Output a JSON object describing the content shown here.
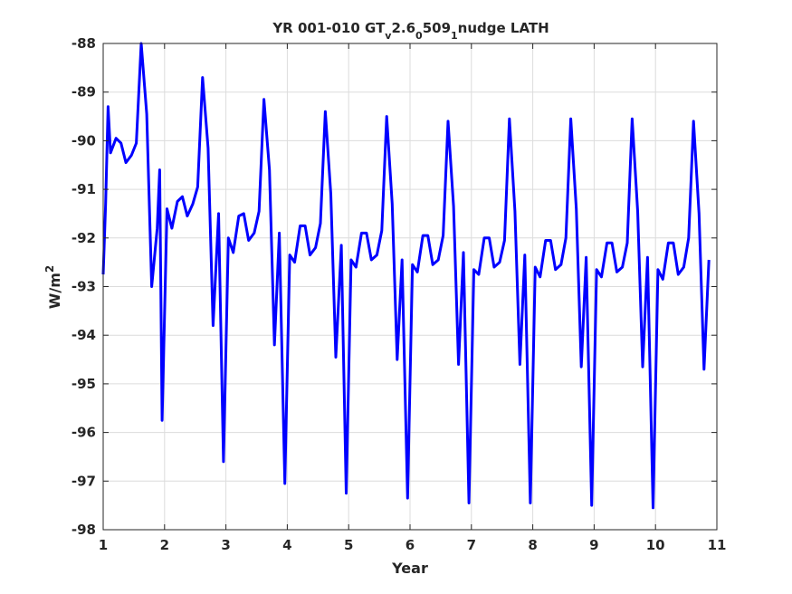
{
  "chart_data": {
    "type": "line",
    "title": {
      "parts": [
        {
          "text": "YR 001-010 GT",
          "shift": "base"
        },
        {
          "text": "v",
          "shift": "sub"
        },
        {
          "text": "2.6",
          "shift": "base"
        },
        {
          "text": "0",
          "shift": "sub"
        },
        {
          "text": "509",
          "shift": "base"
        },
        {
          "text": "1",
          "shift": "sub"
        },
        {
          "text": "nudge LATH",
          "shift": "base"
        }
      ]
    },
    "xlabel": "Year",
    "ylabel": {
      "base": "W/m",
      "sup": "2"
    },
    "xlim": [
      1,
      11
    ],
    "ylim": [
      -98,
      -88
    ],
    "xticks": [
      1,
      2,
      3,
      4,
      5,
      6,
      7,
      8,
      9,
      10,
      11
    ],
    "yticks": [
      -98,
      -97,
      -96,
      -95,
      -94,
      -93,
      -92,
      -91,
      -90,
      -89,
      -88
    ],
    "grid": true,
    "line_color": "#0000ff",
    "series": [
      {
        "points": [
          [
            1.0,
            -92.75
          ],
          [
            1.04,
            -91.3
          ],
          [
            1.08,
            -89.3
          ],
          [
            1.12,
            -90.25
          ],
          [
            1.21,
            -89.95
          ],
          [
            1.29,
            -90.05
          ],
          [
            1.37,
            -90.45
          ],
          [
            1.46,
            -90.3
          ],
          [
            1.54,
            -90.05
          ],
          [
            1.62,
            -88.0
          ],
          [
            1.71,
            -89.45
          ],
          [
            1.79,
            -93.0
          ],
          [
            1.88,
            -91.8
          ],
          [
            1.92,
            -90.6
          ],
          [
            1.96,
            -95.75
          ],
          [
            2.04,
            -91.4
          ],
          [
            2.12,
            -91.8
          ],
          [
            2.21,
            -91.25
          ],
          [
            2.29,
            -91.15
          ],
          [
            2.37,
            -91.55
          ],
          [
            2.46,
            -91.3
          ],
          [
            2.54,
            -90.95
          ],
          [
            2.62,
            -88.7
          ],
          [
            2.71,
            -90.15
          ],
          [
            2.79,
            -93.8
          ],
          [
            2.88,
            -91.5
          ],
          [
            2.96,
            -96.6
          ],
          [
            3.04,
            -92.0
          ],
          [
            3.12,
            -92.3
          ],
          [
            3.21,
            -91.55
          ],
          [
            3.29,
            -91.5
          ],
          [
            3.37,
            -92.05
          ],
          [
            3.46,
            -91.9
          ],
          [
            3.54,
            -91.45
          ],
          [
            3.62,
            -89.15
          ],
          [
            3.71,
            -90.6
          ],
          [
            3.79,
            -94.2
          ],
          [
            3.87,
            -91.9
          ],
          [
            3.96,
            -97.05
          ],
          [
            4.04,
            -92.35
          ],
          [
            4.12,
            -92.5
          ],
          [
            4.21,
            -91.75
          ],
          [
            4.29,
            -91.75
          ],
          [
            4.37,
            -92.35
          ],
          [
            4.46,
            -92.2
          ],
          [
            4.54,
            -91.7
          ],
          [
            4.62,
            -89.4
          ],
          [
            4.71,
            -91.1
          ],
          [
            4.79,
            -94.45
          ],
          [
            4.88,
            -92.15
          ],
          [
            4.96,
            -97.25
          ],
          [
            5.04,
            -92.45
          ],
          [
            5.12,
            -92.6
          ],
          [
            5.21,
            -91.9
          ],
          [
            5.29,
            -91.9
          ],
          [
            5.37,
            -92.45
          ],
          [
            5.46,
            -92.35
          ],
          [
            5.54,
            -91.85
          ],
          [
            5.62,
            -89.5
          ],
          [
            5.71,
            -91.3
          ],
          [
            5.79,
            -94.5
          ],
          [
            5.87,
            -92.45
          ],
          [
            5.96,
            -97.35
          ],
          [
            6.04,
            -92.55
          ],
          [
            6.12,
            -92.7
          ],
          [
            6.21,
            -91.95
          ],
          [
            6.29,
            -91.95
          ],
          [
            6.37,
            -92.55
          ],
          [
            6.46,
            -92.45
          ],
          [
            6.54,
            -91.95
          ],
          [
            6.62,
            -89.6
          ],
          [
            6.71,
            -91.35
          ],
          [
            6.79,
            -94.6
          ],
          [
            6.87,
            -92.3
          ],
          [
            6.96,
            -97.45
          ],
          [
            7.04,
            -92.65
          ],
          [
            7.12,
            -92.75
          ],
          [
            7.21,
            -92.0
          ],
          [
            7.29,
            -92.0
          ],
          [
            7.37,
            -92.6
          ],
          [
            7.46,
            -92.5
          ],
          [
            7.54,
            -92.05
          ],
          [
            7.62,
            -89.55
          ],
          [
            7.71,
            -91.45
          ],
          [
            7.79,
            -94.6
          ],
          [
            7.87,
            -92.35
          ],
          [
            7.96,
            -97.45
          ],
          [
            8.04,
            -92.6
          ],
          [
            8.12,
            -92.8
          ],
          [
            8.21,
            -92.05
          ],
          [
            8.29,
            -92.05
          ],
          [
            8.37,
            -92.65
          ],
          [
            8.46,
            -92.55
          ],
          [
            8.54,
            -92.0
          ],
          [
            8.62,
            -89.55
          ],
          [
            8.71,
            -91.4
          ],
          [
            8.79,
            -94.65
          ],
          [
            8.87,
            -92.4
          ],
          [
            8.96,
            -97.5
          ],
          [
            9.04,
            -92.65
          ],
          [
            9.12,
            -92.8
          ],
          [
            9.21,
            -92.1
          ],
          [
            9.29,
            -92.1
          ],
          [
            9.37,
            -92.7
          ],
          [
            9.46,
            -92.6
          ],
          [
            9.54,
            -92.1
          ],
          [
            9.62,
            -89.55
          ],
          [
            9.71,
            -91.45
          ],
          [
            9.79,
            -94.65
          ],
          [
            9.87,
            -92.4
          ],
          [
            9.96,
            -97.55
          ],
          [
            10.04,
            -92.65
          ],
          [
            10.12,
            -92.85
          ],
          [
            10.21,
            -92.1
          ],
          [
            10.29,
            -92.1
          ],
          [
            10.37,
            -92.75
          ],
          [
            10.46,
            -92.6
          ],
          [
            10.54,
            -92.0
          ],
          [
            10.62,
            -89.6
          ],
          [
            10.71,
            -91.5
          ],
          [
            10.79,
            -94.7
          ],
          [
            10.87,
            -92.45
          ]
        ]
      }
    ]
  }
}
